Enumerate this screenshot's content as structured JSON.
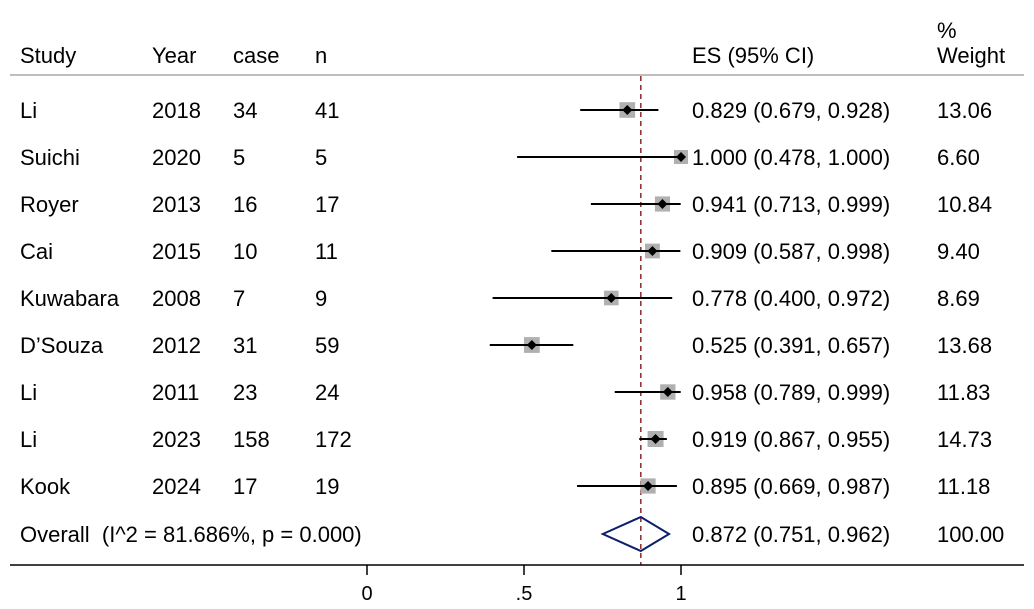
{
  "chart_data": {
    "type": "forest",
    "headers": {
      "study": "Study",
      "year": "Year",
      "case": "case",
      "n": "n",
      "es": "ES (95% CI)",
      "weight_line1": "%",
      "weight_line2": "Weight"
    },
    "studies": [
      {
        "study": "Li",
        "year": "2018",
        "case": "34",
        "n": "41",
        "es": 0.829,
        "lo": 0.679,
        "hi": 0.928,
        "es_text": "0.829 (0.679, 0.928)",
        "weight": 13.06,
        "weight_text": "13.06"
      },
      {
        "study": "Suichi",
        "year": "2020",
        "case": "5",
        "n": "5",
        "es": 1.0,
        "lo": 0.478,
        "hi": 1.0,
        "es_text": "1.000 (0.478, 1.000)",
        "weight": 6.6,
        "weight_text": "6.60"
      },
      {
        "study": "Royer",
        "year": "2013",
        "case": "16",
        "n": "17",
        "es": 0.941,
        "lo": 0.713,
        "hi": 0.999,
        "es_text": "0.941 (0.713, 0.999)",
        "weight": 10.84,
        "weight_text": "10.84"
      },
      {
        "study": "Cai",
        "year": "2015",
        "case": "10",
        "n": "11",
        "es": 0.909,
        "lo": 0.587,
        "hi": 0.998,
        "es_text": "0.909 (0.587, 0.998)",
        "weight": 9.4,
        "weight_text": "9.40"
      },
      {
        "study": "Kuwabara",
        "year": "2008",
        "case": "7",
        "n": "9",
        "es": 0.778,
        "lo": 0.4,
        "hi": 0.972,
        "es_text": "0.778 (0.400, 0.972)",
        "weight": 8.69,
        "weight_text": "8.69"
      },
      {
        "study": "D’Souza",
        "year": "2012",
        "case": "31",
        "n": "59",
        "es": 0.525,
        "lo": 0.391,
        "hi": 0.657,
        "es_text": "0.525 (0.391, 0.657)",
        "weight": 13.68,
        "weight_text": "13.68"
      },
      {
        "study": "Li",
        "year": "2011",
        "case": "23",
        "n": "24",
        "es": 0.958,
        "lo": 0.789,
        "hi": 0.999,
        "es_text": "0.958 (0.789, 0.999)",
        "weight": 11.83,
        "weight_text": "11.83"
      },
      {
        "study": "Li",
        "year": "2023",
        "case": "158",
        "n": "172",
        "es": 0.919,
        "lo": 0.867,
        "hi": 0.955,
        "es_text": "0.919 (0.867, 0.955)",
        "weight": 14.73,
        "weight_text": "14.73"
      },
      {
        "study": "Kook",
        "year": "2024",
        "case": "17",
        "n": "19",
        "es": 0.895,
        "lo": 0.669,
        "hi": 0.987,
        "es_text": "0.895 (0.669, 0.987)",
        "weight": 11.18,
        "weight_text": "11.18"
      }
    ],
    "overall": {
      "label": "Overall  (I^2 = 81.686%, p = 0.000)",
      "es": 0.872,
      "lo": 0.751,
      "hi": 0.962,
      "es_text": "0.872 (0.751, 0.962)",
      "weight_text": "100.00"
    },
    "xaxis": {
      "range": [
        0,
        1
      ],
      "ticks": [
        0,
        0.5,
        1
      ],
      "tick_labels": [
        "0",
        ".5",
        "1"
      ]
    },
    "colors": {
      "reference_line": "#8b2a2a",
      "overall_diamond": "#0b1f6b",
      "weight_box": "#b0b0b0",
      "point": "#000000",
      "rule": "#000000"
    }
  }
}
